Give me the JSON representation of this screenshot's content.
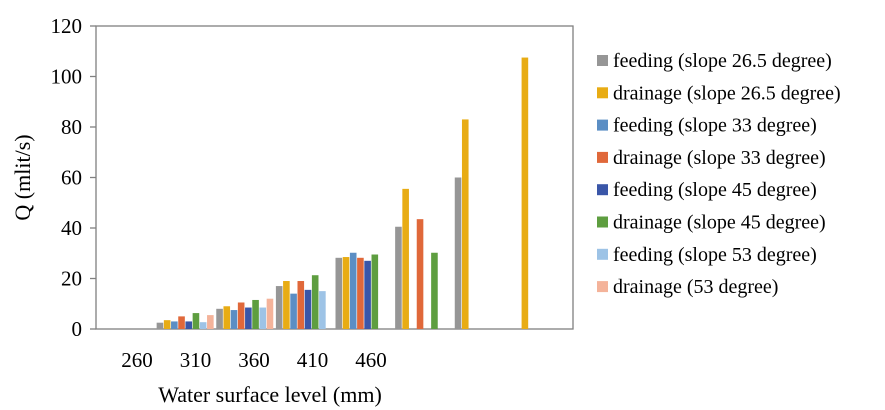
{
  "chart_data": {
    "type": "bar",
    "title": "",
    "xlabel": "Water surface level (mm)",
    "ylabel": "Q (mlit/s)",
    "ylim": [
      0,
      120
    ],
    "yticks": [
      "0",
      "20",
      "40",
      "60",
      "80",
      "100",
      "120"
    ],
    "xtick_labels": [
      "260",
      "310",
      "360",
      "410",
      "460"
    ],
    "categories": [
      "260",
      "310",
      "360",
      "410",
      "460",
      "",
      "",
      ""
    ],
    "grid": false,
    "legend_position": "right",
    "series": [
      {
        "name": "feeding (slope 26.5 degree)",
        "color": "#969696",
        "values": [
          null,
          2.5,
          8,
          17,
          28.2,
          40.5,
          60,
          null
        ]
      },
      {
        "name": "drainage (slope 26.5 degree)",
        "color": "#E8AC14",
        "values": [
          null,
          3.5,
          9,
          19,
          28.5,
          55.5,
          83,
          107.5
        ]
      },
      {
        "name": "feeding (slope 33 degree)",
        "color": "#5B8EC4",
        "values": [
          null,
          3,
          7.5,
          14,
          30.2,
          null,
          null,
          null
        ]
      },
      {
        "name": "drainage (slope 33 degree)",
        "color": "#E0683A",
        "values": [
          null,
          5,
          10.5,
          19,
          28.2,
          43.5,
          null,
          null
        ]
      },
      {
        "name": "feeding (slope 45 degree)",
        "color": "#3A56A8",
        "values": [
          null,
          3,
          8.5,
          15.5,
          27,
          null,
          null,
          null
        ]
      },
      {
        "name": "drainage (slope 45 degree)",
        "color": "#5E9E40",
        "values": [
          null,
          6.3,
          11.5,
          21.3,
          29.5,
          30.2,
          null,
          null
        ]
      },
      {
        "name": "feeding (slope 53 degree)",
        "color": "#9DC3E6",
        "values": [
          null,
          2.7,
          8.5,
          15,
          null,
          null,
          null,
          null
        ]
      },
      {
        "name": "drainage (53 degree)",
        "color": "#F4B39A",
        "values": [
          null,
          5.5,
          12,
          null,
          null,
          null,
          null,
          null
        ]
      }
    ]
  }
}
